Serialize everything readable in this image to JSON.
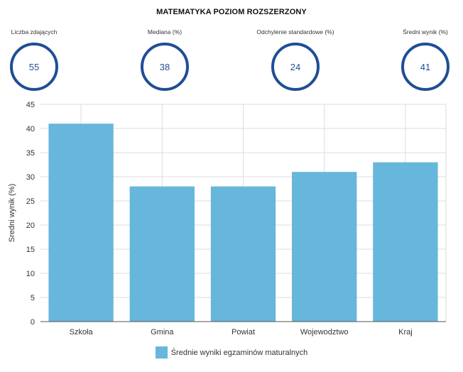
{
  "title": "MATEMATYKA POZIOM ROZSZERZONY",
  "stats": [
    {
      "label": "Liczba zdających",
      "value": "55"
    },
    {
      "label": "Mediana (%)",
      "value": "38"
    },
    {
      "label": "Odchylenie standardowe (%)",
      "value": "24"
    },
    {
      "label": "Średni wynik (%)",
      "value": "41"
    }
  ],
  "colors": {
    "bar": "#67b6dc",
    "ring": "#1f4e96",
    "grid": "#dddddd",
    "axis": "#555555"
  },
  "chart_data": {
    "type": "bar",
    "categories": [
      "Szkoła",
      "Gmina",
      "Powiat",
      "Wojewodztwo",
      "Kraj"
    ],
    "series": [
      {
        "name": "Średnie wyniki egzaminów maturalnych",
        "values": [
          41,
          28,
          28,
          31,
          33
        ]
      }
    ],
    "ylabel": "Sredni wynik (%)",
    "xlabel": "",
    "ylim": [
      0,
      45
    ],
    "yticks": [
      0,
      5,
      10,
      15,
      20,
      25,
      30,
      35,
      40,
      45
    ],
    "grid": true,
    "legend": "bottom"
  }
}
